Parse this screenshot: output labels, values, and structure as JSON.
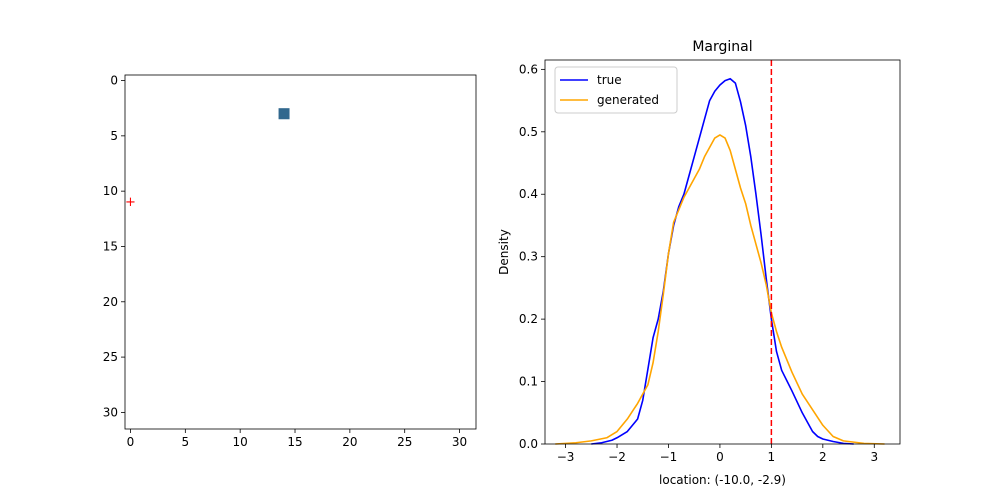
{
  "chart_data": [
    {
      "type": "heatmap",
      "title": "",
      "xlabel": "",
      "ylabel": "",
      "grid_size": 32,
      "xlim": [
        -0.5,
        31.5
      ],
      "ylim": [
        31.5,
        -0.5
      ],
      "xticks": [
        0,
        5,
        10,
        15,
        20,
        25,
        30
      ],
      "yticks": [
        0,
        5,
        10,
        15,
        20,
        25,
        30
      ],
      "filled_cells": [
        {
          "row": 3,
          "col": 14,
          "color": "#31688e"
        }
      ],
      "markers": [
        {
          "x": 0,
          "y": 11,
          "symbol": "+",
          "color": "#ff0000"
        }
      ]
    },
    {
      "type": "line",
      "title": "Marginal",
      "xlabel": "location: (-10.0, -2.9)",
      "ylabel": "Density",
      "xlim": [
        -3.4,
        3.5
      ],
      "ylim": [
        0,
        0.615
      ],
      "xticks": [
        -3,
        -2,
        -1,
        0,
        1,
        2,
        3
      ],
      "yticks": [
        0.0,
        0.1,
        0.2,
        0.3,
        0.4,
        0.5,
        0.6
      ],
      "ytick_labels": [
        "0.0",
        "0.1",
        "0.2",
        "0.3",
        "0.4",
        "0.5",
        "0.6"
      ],
      "vline": {
        "x": 1.0,
        "color": "#ff0000",
        "style": "dashed"
      },
      "legend_position": "upper-left",
      "series": [
        {
          "name": "true",
          "color": "#0000ff",
          "x": [
            -2.5,
            -2.3,
            -2.1,
            -2.0,
            -1.8,
            -1.6,
            -1.5,
            -1.4,
            -1.3,
            -1.2,
            -1.1,
            -1.0,
            -0.9,
            -0.8,
            -0.7,
            -0.6,
            -0.5,
            -0.4,
            -0.3,
            -0.2,
            -0.1,
            0.0,
            0.1,
            0.2,
            0.3,
            0.4,
            0.5,
            0.6,
            0.7,
            0.8,
            0.9,
            1.0,
            1.1,
            1.2,
            1.4,
            1.6,
            1.8,
            1.9,
            2.0,
            2.2,
            2.4,
            2.6
          ],
          "y": [
            0.0,
            0.002,
            0.006,
            0.01,
            0.02,
            0.04,
            0.07,
            0.12,
            0.17,
            0.2,
            0.245,
            0.305,
            0.35,
            0.38,
            0.4,
            0.43,
            0.46,
            0.49,
            0.52,
            0.55,
            0.565,
            0.575,
            0.582,
            0.585,
            0.578,
            0.548,
            0.51,
            0.46,
            0.4,
            0.335,
            0.265,
            0.2,
            0.148,
            0.118,
            0.085,
            0.05,
            0.02,
            0.012,
            0.008,
            0.004,
            0.001,
            0.0
          ]
        },
        {
          "name": "generated",
          "color": "#ffa500",
          "x": [
            -3.2,
            -2.8,
            -2.5,
            -2.2,
            -2.0,
            -1.8,
            -1.6,
            -1.4,
            -1.3,
            -1.2,
            -1.1,
            -1.0,
            -0.9,
            -0.8,
            -0.7,
            -0.6,
            -0.5,
            -0.4,
            -0.3,
            -0.2,
            -0.1,
            0.0,
            0.1,
            0.2,
            0.3,
            0.4,
            0.5,
            0.6,
            0.7,
            0.8,
            0.9,
            1.0,
            1.1,
            1.2,
            1.4,
            1.6,
            1.8,
            2.0,
            2.2,
            2.4,
            2.8,
            3.2
          ],
          "y": [
            0.0,
            0.002,
            0.005,
            0.01,
            0.02,
            0.04,
            0.065,
            0.095,
            0.13,
            0.18,
            0.24,
            0.305,
            0.355,
            0.375,
            0.395,
            0.41,
            0.425,
            0.44,
            0.46,
            0.475,
            0.49,
            0.495,
            0.49,
            0.47,
            0.44,
            0.41,
            0.385,
            0.35,
            0.32,
            0.29,
            0.255,
            0.21,
            0.18,
            0.155,
            0.115,
            0.08,
            0.055,
            0.03,
            0.012,
            0.005,
            0.001,
            0.0
          ]
        }
      ]
    }
  ]
}
